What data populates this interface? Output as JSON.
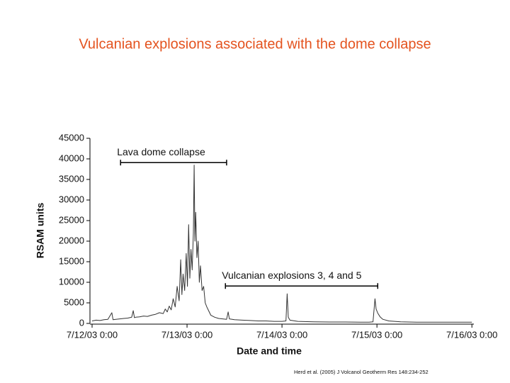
{
  "chart_data": {
    "type": "line",
    "title": "Vulcanian explosions associated with the dome collapse",
    "x_label": "Date and time",
    "y_label": "RSAM units",
    "source": "Herd et al. (2005) J Volcanol Geotherm Res 148:234-252",
    "color": "#333333",
    "xlim": [
      0,
      96.5
    ],
    "xticks": [
      {
        "value": 0,
        "label": "7/12/03 0:00"
      },
      {
        "value": 24,
        "label": "7/13/03 0:00"
      },
      {
        "value": 48,
        "label": "7/14/03 0:00"
      },
      {
        "value": 72,
        "label": "7/15/03 0:00"
      },
      {
        "value": 96,
        "label": "7/16/03 0:00"
      }
    ],
    "ylim": [
      0,
      45000
    ],
    "yticks": [
      0,
      5000,
      10000,
      15000,
      20000,
      25000,
      30000,
      35000,
      40000,
      45000
    ],
    "annotations": [
      {
        "text": "Lava dome collapse",
        "x": [
          7.2,
          34
        ],
        "y": 39100
      },
      {
        "text": "Vulcanian explosions 3, 4 and 5",
        "x": [
          33.7,
          72.2
        ],
        "y": 9100
      }
    ],
    "x": [
      0,
      1,
      2,
      3,
      4,
      5,
      5.3,
      6,
      7,
      8,
      9,
      10,
      10.4,
      10.7,
      11,
      12,
      13,
      14,
      15,
      16,
      17,
      18,
      18.5,
      19,
      19.5,
      20,
      20.5,
      21,
      21.5,
      22,
      22.4,
      22.7,
      23,
      23.4,
      23.8,
      24.1,
      24.4,
      24.7,
      25,
      25.3,
      25.6,
      25.8,
      26,
      26.2,
      26.5,
      26.8,
      27.1,
      27.4,
      27.8,
      28.2,
      28.6,
      29,
      29.5,
      30,
      31,
      32,
      33,
      34,
      34.4,
      34.7,
      36,
      38,
      40,
      42,
      44,
      46,
      48,
      49,
      49.3,
      49.6,
      50,
      52,
      56,
      60,
      64,
      68,
      70,
      71,
      71.5,
      71.8,
      72.2,
      72.8,
      73.5,
      75,
      78,
      82,
      86,
      90,
      94,
      96
    ],
    "values": [
      600,
      800,
      700,
      900,
      1000,
      2600,
      900,
      1000,
      1100,
      1200,
      1300,
      1500,
      3100,
      1400,
      1500,
      1600,
      1800,
      1700,
      2000,
      2200,
      2600,
      2400,
      3500,
      2800,
      4200,
      3300,
      6000,
      4000,
      9000,
      5500,
      15500,
      7000,
      12000,
      8000,
      17000,
      9000,
      24000,
      11000,
      18000,
      13000,
      22000,
      38500,
      20000,
      27000,
      16000,
      20000,
      10000,
      14000,
      8000,
      9000,
      5000,
      4000,
      3000,
      2000,
      1500,
      1200,
      1100,
      1000,
      2800,
      1100,
      900,
      800,
      700,
      600,
      600,
      500,
      500,
      600,
      7200,
      1500,
      800,
      500,
      400,
      350,
      350,
      300,
      300,
      400,
      6000,
      3500,
      2500,
      1600,
      1000,
      600,
      400,
      300,
      300,
      300,
      300,
      300
    ]
  }
}
